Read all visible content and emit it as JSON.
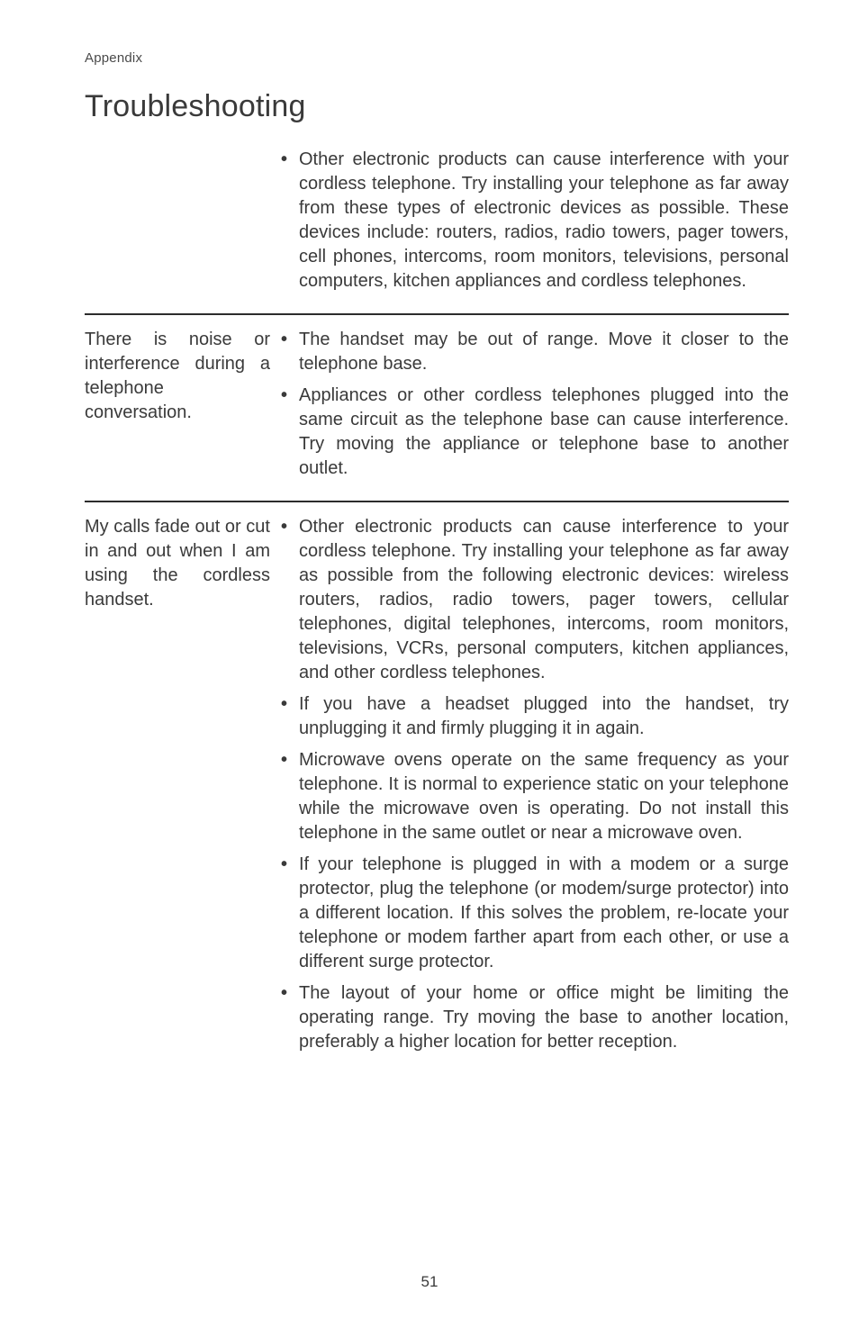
{
  "runningHead": "Appendix",
  "title": "Troubleshooting",
  "sections": [
    {
      "label": "",
      "items": [
        "Other electronic products can cause interference with your cordless telephone. Try installing your telephone as far away from these types of electronic devices as possible.  These devices include: routers, radios, radio towers, pager towers, cell phones, intercoms, room monitors, televisions, personal computers, kitchen appliances and cordless telephones."
      ]
    },
    {
      "label": "There is noise or interference during a telephone conversation.",
      "items": [
        "The handset may be out of range. Move it closer to the telephone base.",
        "Appliances or other cordless telephones plugged into the same circuit as the telephone base can cause interference. Try moving the appliance or telephone base to another outlet."
      ]
    },
    {
      "label": "My calls fade out or cut in and out when I am using the cordless handset.",
      "items": [
        "Other electronic products can cause interference to your cordless telephone. Try installing your telephone as far away as possible from the following electronic devices: wireless routers, radios, radio towers, pager towers, cellular telephones, digital telephones, intercoms, room monitors, televisions, VCRs, personal computers, kitchen appliances, and other cordless telephones.",
        "If you have a headset plugged into the handset, try unplugging it and firmly plugging it in again.",
        "Microwave ovens operate on the same frequency as your telephone. It is normal to experience static on your telephone while the microwave oven is operating. Do not install this telephone in the same outlet or near a microwave oven.",
        "If your telephone is plugged in with a modem or a surge protector, plug the telephone (or modem/surge protector) into a different location. If this solves the problem, re-locate your telephone or modem farther apart from each other, or use a different surge protector.",
        "The layout of your home or office might be limiting the operating range. Try moving the base to another location, preferably a higher location for better reception."
      ]
    }
  ],
  "pageNumber": "51",
  "colors": {
    "text": "#3a3a3a",
    "rule": "#2c2c2c",
    "background": "#ffffff"
  }
}
